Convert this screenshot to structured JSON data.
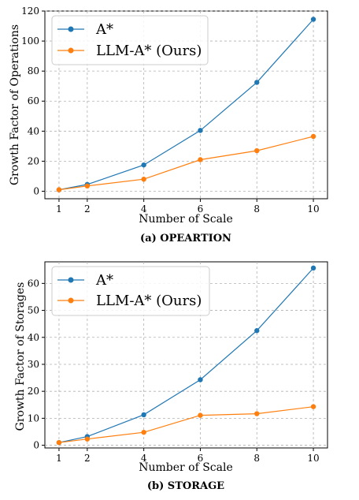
{
  "chart_data": [
    {
      "type": "line",
      "caption": "(a) OPEARTION",
      "xlabel": "Number of Scale",
      "ylabel": "Growth Factor of Operations",
      "x": [
        1,
        2,
        4,
        6,
        8,
        10
      ],
      "xticks": [
        "1",
        "2",
        "4",
        "6",
        "8",
        "10"
      ],
      "xlim": [
        0.5,
        10.5
      ],
      "ylim": [
        -5,
        120
      ],
      "yticks": [
        "0",
        "20",
        "40",
        "60",
        "80",
        "100",
        "120"
      ],
      "grid": true,
      "legend_position": "top-left",
      "series": [
        {
          "name": "A*",
          "color": "#1f77b4",
          "values": [
            1,
            4.5,
            17.5,
            40.5,
            72.5,
            114.5
          ]
        },
        {
          "name": "LLM-A* (Ours)",
          "color": "#ff7f0e",
          "values": [
            1,
            3.5,
            8,
            21,
            27,
            36.5
          ]
        }
      ]
    },
    {
      "type": "line",
      "caption": "(b) STORAGE",
      "xlabel": "Number of Scale",
      "ylabel": "Growth Factor of Storages",
      "x": [
        1,
        2,
        4,
        6,
        8,
        10
      ],
      "xticks": [
        "1",
        "2",
        "4",
        "6",
        "8",
        "10"
      ],
      "xlim": [
        0.5,
        10.5
      ],
      "ylim": [
        -1,
        68
      ],
      "yticks": [
        "0",
        "10",
        "20",
        "30",
        "40",
        "50",
        "60"
      ],
      "grid": true,
      "legend_position": "top-left",
      "series": [
        {
          "name": "A*",
          "color": "#1f77b4",
          "values": [
            1,
            3.2,
            11.3,
            24.3,
            42.5,
            65.7
          ]
        },
        {
          "name": "LLM-A* (Ours)",
          "color": "#ff7f0e",
          "values": [
            1,
            2.3,
            4.8,
            11.1,
            11.7,
            14.3
          ]
        }
      ]
    }
  ]
}
